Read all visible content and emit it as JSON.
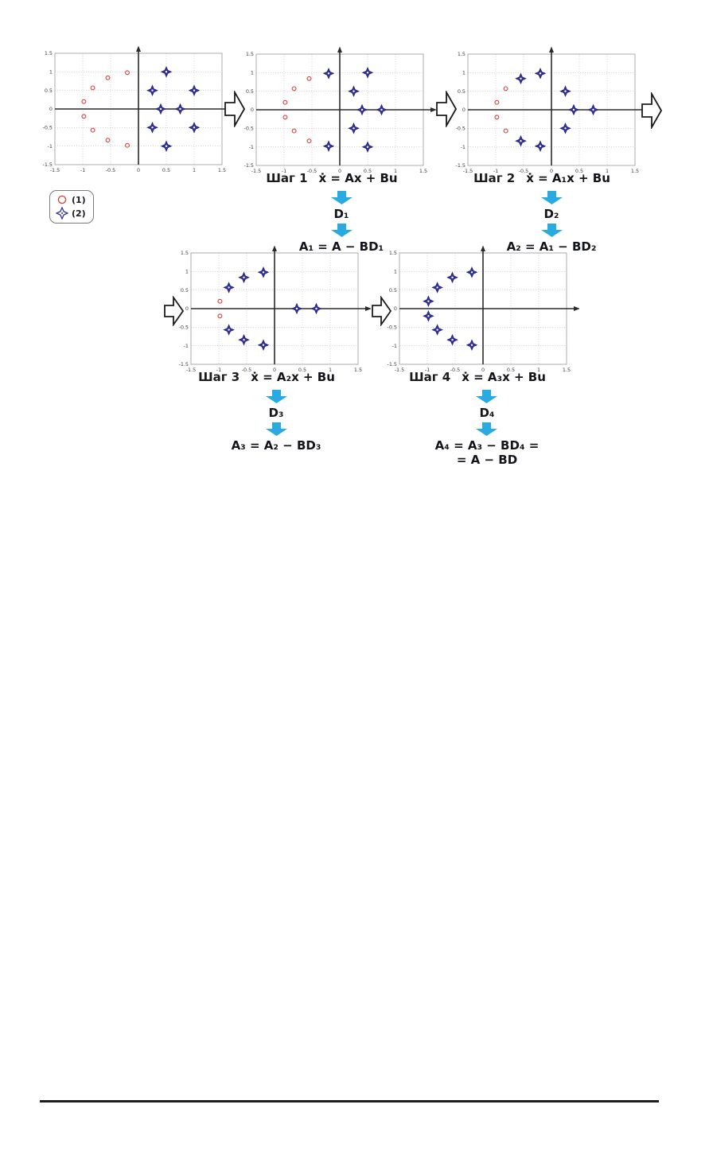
{
  "colors": {
    "page_bg": "#ffffff",
    "desired_pole": "#d9403a",
    "system_pole": "#32329b",
    "pole_outline": "#23237a",
    "flow_arrow_fill": "#ffffff",
    "flow_arrow_stroke": "#1c1c1c",
    "down_arrow": "#29abe2",
    "grid_line": "#c4c4c4",
    "axis_line": "#2b2b2b",
    "tick_text": "#3a3a3a",
    "plot_border": "#9b9b9b",
    "text": "#1a1a22",
    "divider": "#1d1d1b"
  },
  "legend": {
    "items": [
      {
        "marker": "circle",
        "label": "(1)"
      },
      {
        "marker": "star",
        "label": "(2)"
      }
    ]
  },
  "steps": [
    {
      "title": "Шаг 1",
      "equation": "ẋ =  Ax + Bu",
      "d_label": "D₁",
      "formula": "A₁ = A − BD₁"
    },
    {
      "title": "Шаг 2",
      "equation": "ẋ =  A₁x + Bu",
      "d_label": "D₂",
      "formula": "A₂ = A₁ − BD₂"
    },
    {
      "title": "Шаг 3",
      "equation": "ẋ =  A₂x + Bu",
      "d_label": "D₃",
      "formula": "A₃ = A₂ − BD₃"
    },
    {
      "title": "Шаг 4",
      "equation": "ẋ =  A₃x + Bu",
      "d_label": "D₄",
      "formula": "A₄ = A₃ − BD₄ =",
      "formula2": "= A − BD"
    }
  ],
  "chart_data": [
    {
      "name": "initial-pole-map",
      "type": "scatter",
      "xlim": [
        -1.5,
        1.5
      ],
      "ylim": [
        -1.5,
        1.5
      ],
      "xticks": [
        -1.5,
        -1,
        -0.5,
        0,
        0.5,
        1,
        1.5
      ],
      "yticks": [
        -1.5,
        -1,
        -0.5,
        0,
        0.5,
        1,
        1.5
      ],
      "grid": true,
      "series": [
        {
          "name": "(1)",
          "marker": "circle",
          "color": "#d9403a",
          "points": [
            [
              -0.2,
              0.98
            ],
            [
              -0.55,
              0.84
            ],
            [
              -0.82,
              0.57
            ],
            [
              -0.98,
              0.2
            ],
            [
              -0.98,
              -0.2
            ],
            [
              -0.82,
              -0.57
            ],
            [
              -0.55,
              -0.84
            ],
            [
              -0.2,
              -0.98
            ]
          ]
        },
        {
          "name": "(2)",
          "marker": "star",
          "color": "#32329b",
          "points": [
            [
              0.5,
              1
            ],
            [
              1,
              0.5
            ],
            [
              0.25,
              0.5
            ],
            [
              0.75,
              0
            ],
            [
              0.4,
              0
            ],
            [
              0.25,
              -0.5
            ],
            [
              1,
              -0.5
            ],
            [
              0.5,
              -1
            ]
          ]
        }
      ]
    },
    {
      "name": "pole-map-after-step-1",
      "type": "scatter",
      "xlim": [
        -1.5,
        1.5
      ],
      "ylim": [
        -1.5,
        1.5
      ],
      "xticks": [
        -1.5,
        -1,
        -0.5,
        0,
        0.5,
        1,
        1.5
      ],
      "yticks": [
        -1.5,
        -1,
        -0.5,
        0,
        0.5,
        1,
        1.5
      ],
      "grid": true,
      "series": [
        {
          "name": "(1)",
          "marker": "circle",
          "color": "#d9403a",
          "points": [
            [
              -0.55,
              0.84
            ],
            [
              -0.82,
              0.57
            ],
            [
              -0.98,
              0.2
            ],
            [
              -0.98,
              -0.2
            ],
            [
              -0.82,
              -0.57
            ],
            [
              -0.55,
              -0.84
            ]
          ]
        },
        {
          "name": "(2)",
          "marker": "star",
          "color": "#32329b",
          "points": [
            [
              -0.2,
              0.98
            ],
            [
              0.5,
              1
            ],
            [
              0.25,
              0.5
            ],
            [
              0.75,
              0
            ],
            [
              0.4,
              0
            ],
            [
              0.25,
              -0.5
            ],
            [
              -0.2,
              -0.98
            ],
            [
              0.5,
              -1
            ]
          ]
        }
      ]
    },
    {
      "name": "pole-map-after-step-2",
      "type": "scatter",
      "xlim": [
        -1.5,
        1.5
      ],
      "ylim": [
        -1.5,
        1.5
      ],
      "xticks": [
        -1.5,
        -1,
        -0.5,
        0,
        0.5,
        1,
        1.5
      ],
      "yticks": [
        -1.5,
        -1,
        -0.5,
        0,
        0.5,
        1,
        1.5
      ],
      "grid": true,
      "series": [
        {
          "name": "(1)",
          "marker": "circle",
          "color": "#d9403a",
          "points": [
            [
              -0.82,
              0.57
            ],
            [
              -0.98,
              0.2
            ],
            [
              -0.98,
              -0.2
            ],
            [
              -0.82,
              -0.57
            ]
          ]
        },
        {
          "name": "(2)",
          "marker": "star",
          "color": "#32329b",
          "points": [
            [
              -0.2,
              0.98
            ],
            [
              -0.55,
              0.84
            ],
            [
              0.25,
              0.5
            ],
            [
              0.75,
              0
            ],
            [
              0.4,
              0
            ],
            [
              0.25,
              -0.5
            ],
            [
              -0.55,
              -0.84
            ],
            [
              -0.2,
              -0.98
            ]
          ]
        }
      ]
    },
    {
      "name": "pole-map-after-step-3",
      "type": "scatter",
      "xlim": [
        -1.5,
        1.5
      ],
      "ylim": [
        -1.5,
        1.5
      ],
      "xticks": [
        -1.5,
        -1,
        -0.5,
        0,
        0.5,
        1,
        1.5
      ],
      "yticks": [
        -1.5,
        -1,
        -0.5,
        0,
        0.5,
        1,
        1.5
      ],
      "grid": true,
      "series": [
        {
          "name": "(1)",
          "marker": "circle",
          "color": "#d9403a",
          "points": [
            [
              -0.98,
              0.2
            ],
            [
              -0.98,
              -0.2
            ]
          ]
        },
        {
          "name": "(2)",
          "marker": "star",
          "color": "#32329b",
          "points": [
            [
              -0.2,
              0.98
            ],
            [
              -0.55,
              0.84
            ],
            [
              -0.82,
              0.57
            ],
            [
              0.75,
              0
            ],
            [
              0.4,
              0
            ],
            [
              -0.82,
              -0.57
            ],
            [
              -0.55,
              -0.84
            ],
            [
              -0.2,
              -0.98
            ]
          ]
        }
      ]
    },
    {
      "name": "pole-map-after-step-4",
      "type": "scatter",
      "xlim": [
        -1.5,
        1.5
      ],
      "ylim": [
        -1.5,
        1.5
      ],
      "xticks": [
        -1.5,
        -1,
        -0.5,
        0,
        0.5,
        1,
        1.5
      ],
      "yticks": [
        -1.5,
        -1,
        -0.5,
        0,
        0.5,
        1,
        1.5
      ],
      "grid": true,
      "series": [
        {
          "name": "(1)",
          "marker": "circle",
          "color": "#d9403a",
          "points": []
        },
        {
          "name": "(2)",
          "marker": "star",
          "color": "#32329b",
          "points": [
            [
              -0.2,
              0.98
            ],
            [
              -0.55,
              0.84
            ],
            [
              -0.82,
              0.57
            ],
            [
              -0.98,
              0.2
            ],
            [
              -0.98,
              -0.2
            ],
            [
              -0.82,
              -0.57
            ],
            [
              -0.55,
              -0.84
            ],
            [
              -0.2,
              -0.98
            ]
          ]
        }
      ]
    }
  ]
}
